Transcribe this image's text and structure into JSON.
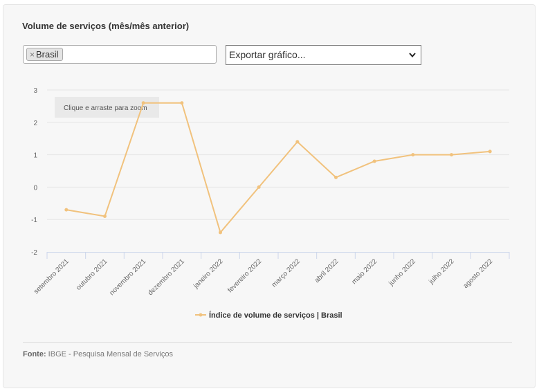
{
  "title": "Volume de serviços (mês/mês anterior)",
  "filter": {
    "tag_label": "Brasil",
    "remove_symbol": "×"
  },
  "export": {
    "label": "Exportar gráfico..."
  },
  "zoom_hint": "Clique e arraste para zoom",
  "source": {
    "label": "Fonte:",
    "text": "IBGE - Pesquisa Mensal de Serviços"
  },
  "colors": {
    "series": "#f1c27d",
    "grid": "#e6e6e6",
    "axis": "#ccd6eb"
  },
  "icons": {
    "export_chevron": "chevron-down-icon",
    "legend_marker": "legend-line-marker-icon"
  },
  "chart_data": {
    "type": "line",
    "categories": [
      "setembro 2021",
      "outubro 2021",
      "novembro 2021",
      "dezembro 2021",
      "janeiro 2022",
      "fevereiro 2022",
      "março 2022",
      "abril 2022",
      "maio 2022",
      "junho 2022",
      "julho 2022",
      "agosto 2022"
    ],
    "series": [
      {
        "name": "Índice de volume de serviços | Brasil",
        "values": [
          -0.7,
          -0.9,
          2.6,
          2.6,
          -1.4,
          0.0,
          1.4,
          0.3,
          0.8,
          1.0,
          1.0,
          1.1
        ]
      }
    ],
    "yticks": [
      "-2",
      "-1",
      "0",
      "1",
      "2",
      "3"
    ],
    "ylim": [
      -2,
      3
    ],
    "grid": true,
    "legend_position": "bottom-center",
    "title": "",
    "xlabel": "",
    "ylabel": ""
  }
}
